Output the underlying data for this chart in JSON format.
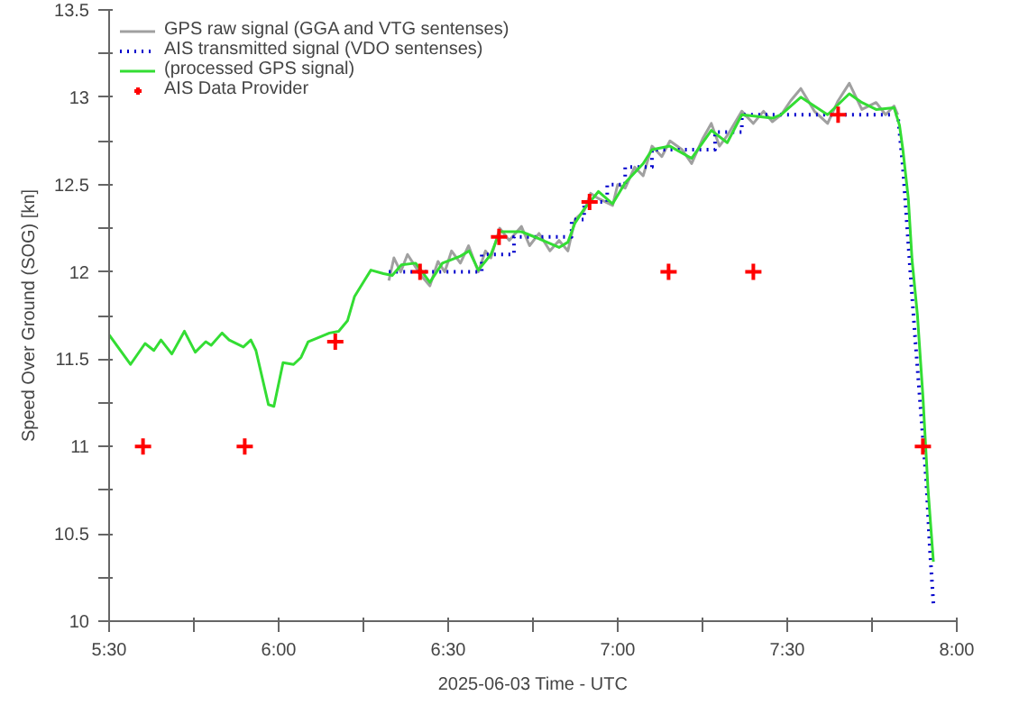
{
  "chart_data": {
    "type": "line",
    "xlabel": "2025-06-03 Time - UTC",
    "ylabel": "Speed Over Ground (SOG) [kn]",
    "xlim": [
      5.5,
      8.0
    ],
    "ylim": [
      10,
      13.5
    ],
    "xticks": [
      {
        "value": 5.5,
        "label": "5:30"
      },
      {
        "value": 5.75,
        "label": null
      },
      {
        "value": 6.0,
        "label": "6:00"
      },
      {
        "value": 6.25,
        "label": null
      },
      {
        "value": 6.5,
        "label": "6:30"
      },
      {
        "value": 6.75,
        "label": null
      },
      {
        "value": 7.0,
        "label": "7:00"
      },
      {
        "value": 7.25,
        "label": null
      },
      {
        "value": 7.5,
        "label": "7:30"
      },
      {
        "value": 7.75,
        "label": null
      },
      {
        "value": 8.0,
        "label": "8:00"
      }
    ],
    "yticks": [
      10,
      {
        "value": 10.25,
        "label": null
      },
      10.5,
      {
        "value": 10.75,
        "label": null
      },
      11,
      {
        "value": 11.25,
        "label": null
      },
      11.5,
      {
        "value": 11.75,
        "label": null
      },
      12,
      {
        "value": 12.25,
        "label": null
      },
      12.5,
      {
        "value": 12.75,
        "label": null
      },
      13,
      {
        "value": 13.25,
        "label": null
      },
      13.5
    ],
    "grid": false,
    "legend": "top left",
    "series": [
      {
        "name": "GPS raw signal (GGA and VTG sentenses)",
        "color": "#a0a0a0",
        "line_style": "solid",
        "x": [
          6.325,
          6.34,
          6.36,
          6.38,
          6.4,
          6.42,
          6.446,
          6.47,
          6.49,
          6.51,
          6.536,
          6.56,
          6.589,
          6.61,
          6.626,
          6.652,
          6.68,
          6.716,
          6.74,
          6.768,
          6.8,
          6.827,
          6.853,
          6.874,
          6.901,
          6.92,
          6.943,
          6.985,
          7.0,
          7.022,
          7.05,
          7.075,
          7.101,
          7.13,
          7.154,
          7.19,
          7.218,
          7.25,
          7.276,
          7.3,
          7.323,
          7.366,
          7.4,
          7.43,
          7.456,
          7.482,
          7.51,
          7.54,
          7.58,
          7.619,
          7.65,
          7.683,
          7.72,
          7.762,
          7.79,
          7.815,
          7.826
        ],
        "values": [
          11.95,
          12.08,
          12.0,
          12.1,
          12.04,
          11.98,
          11.92,
          12.06,
          12.0,
          12.12,
          12.05,
          12.15,
          12.0,
          12.12,
          12.08,
          12.25,
          12.18,
          12.26,
          12.15,
          12.22,
          12.12,
          12.18,
          12.12,
          12.3,
          12.35,
          12.45,
          12.42,
          12.38,
          12.5,
          12.48,
          12.6,
          12.55,
          12.72,
          12.66,
          12.75,
          12.7,
          12.62,
          12.76,
          12.85,
          12.72,
          12.78,
          12.92,
          12.85,
          12.92,
          12.86,
          12.9,
          12.98,
          13.05,
          12.92,
          12.85,
          12.98,
          13.08,
          12.93,
          12.97,
          12.9,
          12.95,
          12.9
        ]
      },
      {
        "name": "AIS transmitted signal (VDO sentenses)",
        "color": "#0000cc",
        "line_style": "dotted",
        "x": [
          6.325,
          6.599,
          6.599,
          6.694,
          6.694,
          6.864,
          6.864,
          6.901,
          6.901,
          6.969,
          6.969,
          7.022,
          7.022,
          7.101,
          7.101,
          7.287,
          7.287,
          7.366,
          7.366,
          7.826,
          7.831,
          7.841,
          7.852,
          7.863,
          7.878,
          7.894,
          7.91,
          7.921,
          7.931
        ],
        "values": [
          12.0,
          12.0,
          12.1,
          12.1,
          12.2,
          12.2,
          12.3,
          12.3,
          12.4,
          12.4,
          12.5,
          12.5,
          12.6,
          12.6,
          12.7,
          12.7,
          12.8,
          12.8,
          12.9,
          12.9,
          12.8,
          12.6,
          12.3,
          12.0,
          11.6,
          11.2,
          10.8,
          10.4,
          10.1
        ]
      },
      {
        "name": "(processed GPS signal)",
        "color": "#33dd33",
        "line_style": "solid",
        "x": [
          5.5,
          5.563,
          5.606,
          5.632,
          5.653,
          5.685,
          5.722,
          5.754,
          5.785,
          5.801,
          5.833,
          5.854,
          5.896,
          5.918,
          5.933,
          5.97,
          5.986,
          6.013,
          6.044,
          6.066,
          6.087,
          6.113,
          6.15,
          6.177,
          6.203,
          6.224,
          6.256,
          6.272,
          6.309,
          6.335,
          6.362,
          6.404,
          6.446,
          6.483,
          6.536,
          6.562,
          6.589,
          6.626,
          6.652,
          6.716,
          6.768,
          6.827,
          6.853,
          6.874,
          6.901,
          6.943,
          6.985,
          7.022,
          7.075,
          7.101,
          7.154,
          7.218,
          7.276,
          7.323,
          7.366,
          7.456,
          7.482,
          7.54,
          7.619,
          7.683,
          7.72,
          7.762,
          7.815,
          7.831,
          7.841,
          7.857,
          7.868,
          7.884,
          7.9,
          7.915,
          7.931
        ],
        "values": [
          11.64,
          11.47,
          11.59,
          11.55,
          11.61,
          11.53,
          11.66,
          11.54,
          11.6,
          11.58,
          11.65,
          11.61,
          11.57,
          11.61,
          11.55,
          11.24,
          11.23,
          11.48,
          11.47,
          11.51,
          11.6,
          11.62,
          11.65,
          11.66,
          11.72,
          11.86,
          11.96,
          12.01,
          11.99,
          11.98,
          12.04,
          12.05,
          11.94,
          12.05,
          12.09,
          12.12,
          12.01,
          12.1,
          12.23,
          12.23,
          12.19,
          12.14,
          12.17,
          12.28,
          12.36,
          12.46,
          12.39,
          12.51,
          12.62,
          12.7,
          12.72,
          12.65,
          12.81,
          12.74,
          12.9,
          12.88,
          12.9,
          13.0,
          12.9,
          13.02,
          12.97,
          12.93,
          12.94,
          12.84,
          12.7,
          12.42,
          12.07,
          11.75,
          11.29,
          10.76,
          10.34
        ]
      },
      {
        "name": "AIS Data Provider",
        "color": "#ff0000",
        "type": "scatter",
        "marker": "cross",
        "x": [
          5.6,
          5.9,
          6.167,
          6.417,
          6.65,
          6.917,
          7.15,
          7.4,
          7.65,
          7.9
        ],
        "values": [
          11.0,
          11.0,
          11.6,
          12.0,
          12.2,
          12.4,
          12.0,
          12.0,
          12.9,
          11.0
        ]
      }
    ]
  }
}
